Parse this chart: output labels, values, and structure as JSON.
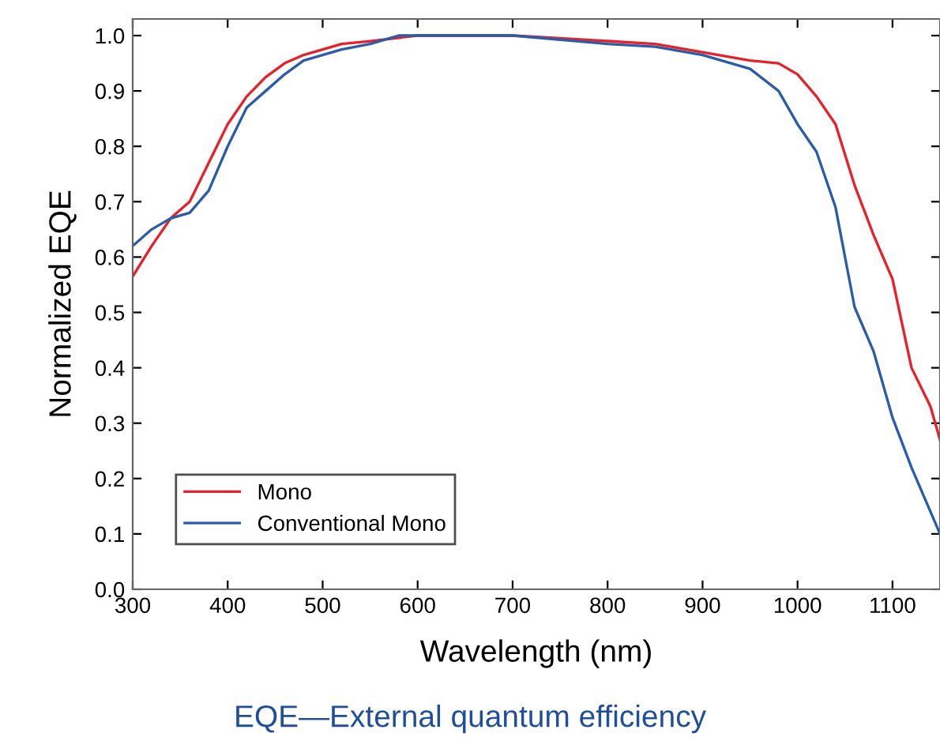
{
  "chart_data": {
    "type": "line",
    "xlabel": "Wavelength (nm)",
    "ylabel": "Normalized EQE",
    "annotations": [
      "EQE—External quantum efficiency"
    ],
    "xlim": [
      300,
      1150
    ],
    "xticks": [
      300,
      400,
      500,
      600,
      700,
      800,
      900,
      1000,
      1100
    ],
    "ylim": [
      0,
      1.03
    ],
    "yticks": [
      {
        "value": 0,
        "label": "0.0"
      },
      0.1,
      0.2,
      0.3,
      0.4,
      0.5,
      0.6,
      0.7,
      0.8,
      0.9,
      {
        "value": 1,
        "label": "1.0"
      }
    ],
    "grid": false,
    "legend": "bottom left",
    "marker": "none",
    "line_style": "solid",
    "series": [
      {
        "name": "Mono",
        "color": "#e8202a",
        "x": [
          300,
          320,
          340,
          360,
          380,
          400,
          420,
          440,
          460,
          480,
          500,
          520,
          550,
          600,
          700,
          800,
          850,
          900,
          950,
          980,
          1000,
          1020,
          1040,
          1060,
          1080,
          1100,
          1120,
          1140,
          1150
        ],
        "values": [
          0.565,
          0.62,
          0.67,
          0.7,
          0.77,
          0.84,
          0.89,
          0.925,
          0.95,
          0.965,
          0.975,
          0.985,
          0.99,
          1.0,
          1.0,
          0.99,
          0.985,
          0.97,
          0.955,
          0.95,
          0.93,
          0.89,
          0.84,
          0.73,
          0.64,
          0.56,
          0.4,
          0.33,
          0.27
        ]
      },
      {
        "name": "Conventional Mono",
        "color": "#2a5caa",
        "x": [
          300,
          320,
          340,
          360,
          380,
          400,
          420,
          440,
          460,
          480,
          500,
          520,
          550,
          580,
          700,
          800,
          850,
          900,
          950,
          980,
          1000,
          1020,
          1040,
          1060,
          1080,
          1100,
          1120,
          1140,
          1150
        ],
        "values": [
          0.62,
          0.65,
          0.67,
          0.68,
          0.72,
          0.8,
          0.87,
          0.9,
          0.93,
          0.955,
          0.965,
          0.975,
          0.985,
          1.0,
          1.0,
          0.985,
          0.98,
          0.965,
          0.94,
          0.9,
          0.84,
          0.79,
          0.69,
          0.51,
          0.43,
          0.31,
          0.22,
          0.14,
          0.1
        ]
      }
    ]
  }
}
